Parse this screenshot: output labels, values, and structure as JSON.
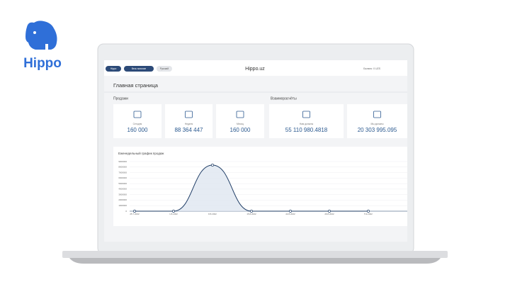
{
  "logo": "Hippo",
  "topbar": {
    "selectors": [
      "Hippo",
      "Весь магазин",
      "Русский"
    ],
    "title": "Hippo.uz",
    "balance": "Баланс: 0 UZS"
  },
  "page_title": "Главная страница",
  "sales": {
    "title": "Продажи",
    "cards": [
      {
        "label": "Сегодня",
        "value": "160 000"
      },
      {
        "label": "Неделя",
        "value": "88 364 447"
      },
      {
        "label": "Месяц",
        "value": "160 000"
      }
    ]
  },
  "settlements": {
    "title": "Взаиморасчёты",
    "cards": [
      {
        "label": "Нам должны",
        "value": "55 110 980.4818"
      },
      {
        "label": "Мы должны",
        "value": "20 303 995.095"
      }
    ]
  },
  "chart_data": {
    "type": "area",
    "title": "Еженедельный график продаж",
    "x": [
      "25.7.2022",
      "1.8.2022",
      "8.8.2022",
      "15.8.2022",
      "22.8.2022",
      "29.8.2022",
      "5.9.2022"
    ],
    "values": [
      0,
      0,
      8364447,
      0,
      0,
      0,
      0
    ],
    "color": "#1f3d66",
    "ylim": [
      0,
      9000000
    ],
    "yticks": [
      0,
      1000000,
      2000000,
      3000000,
      4000000,
      5000000,
      6000000,
      7000000,
      8000000,
      9000000
    ],
    "grid": true
  }
}
